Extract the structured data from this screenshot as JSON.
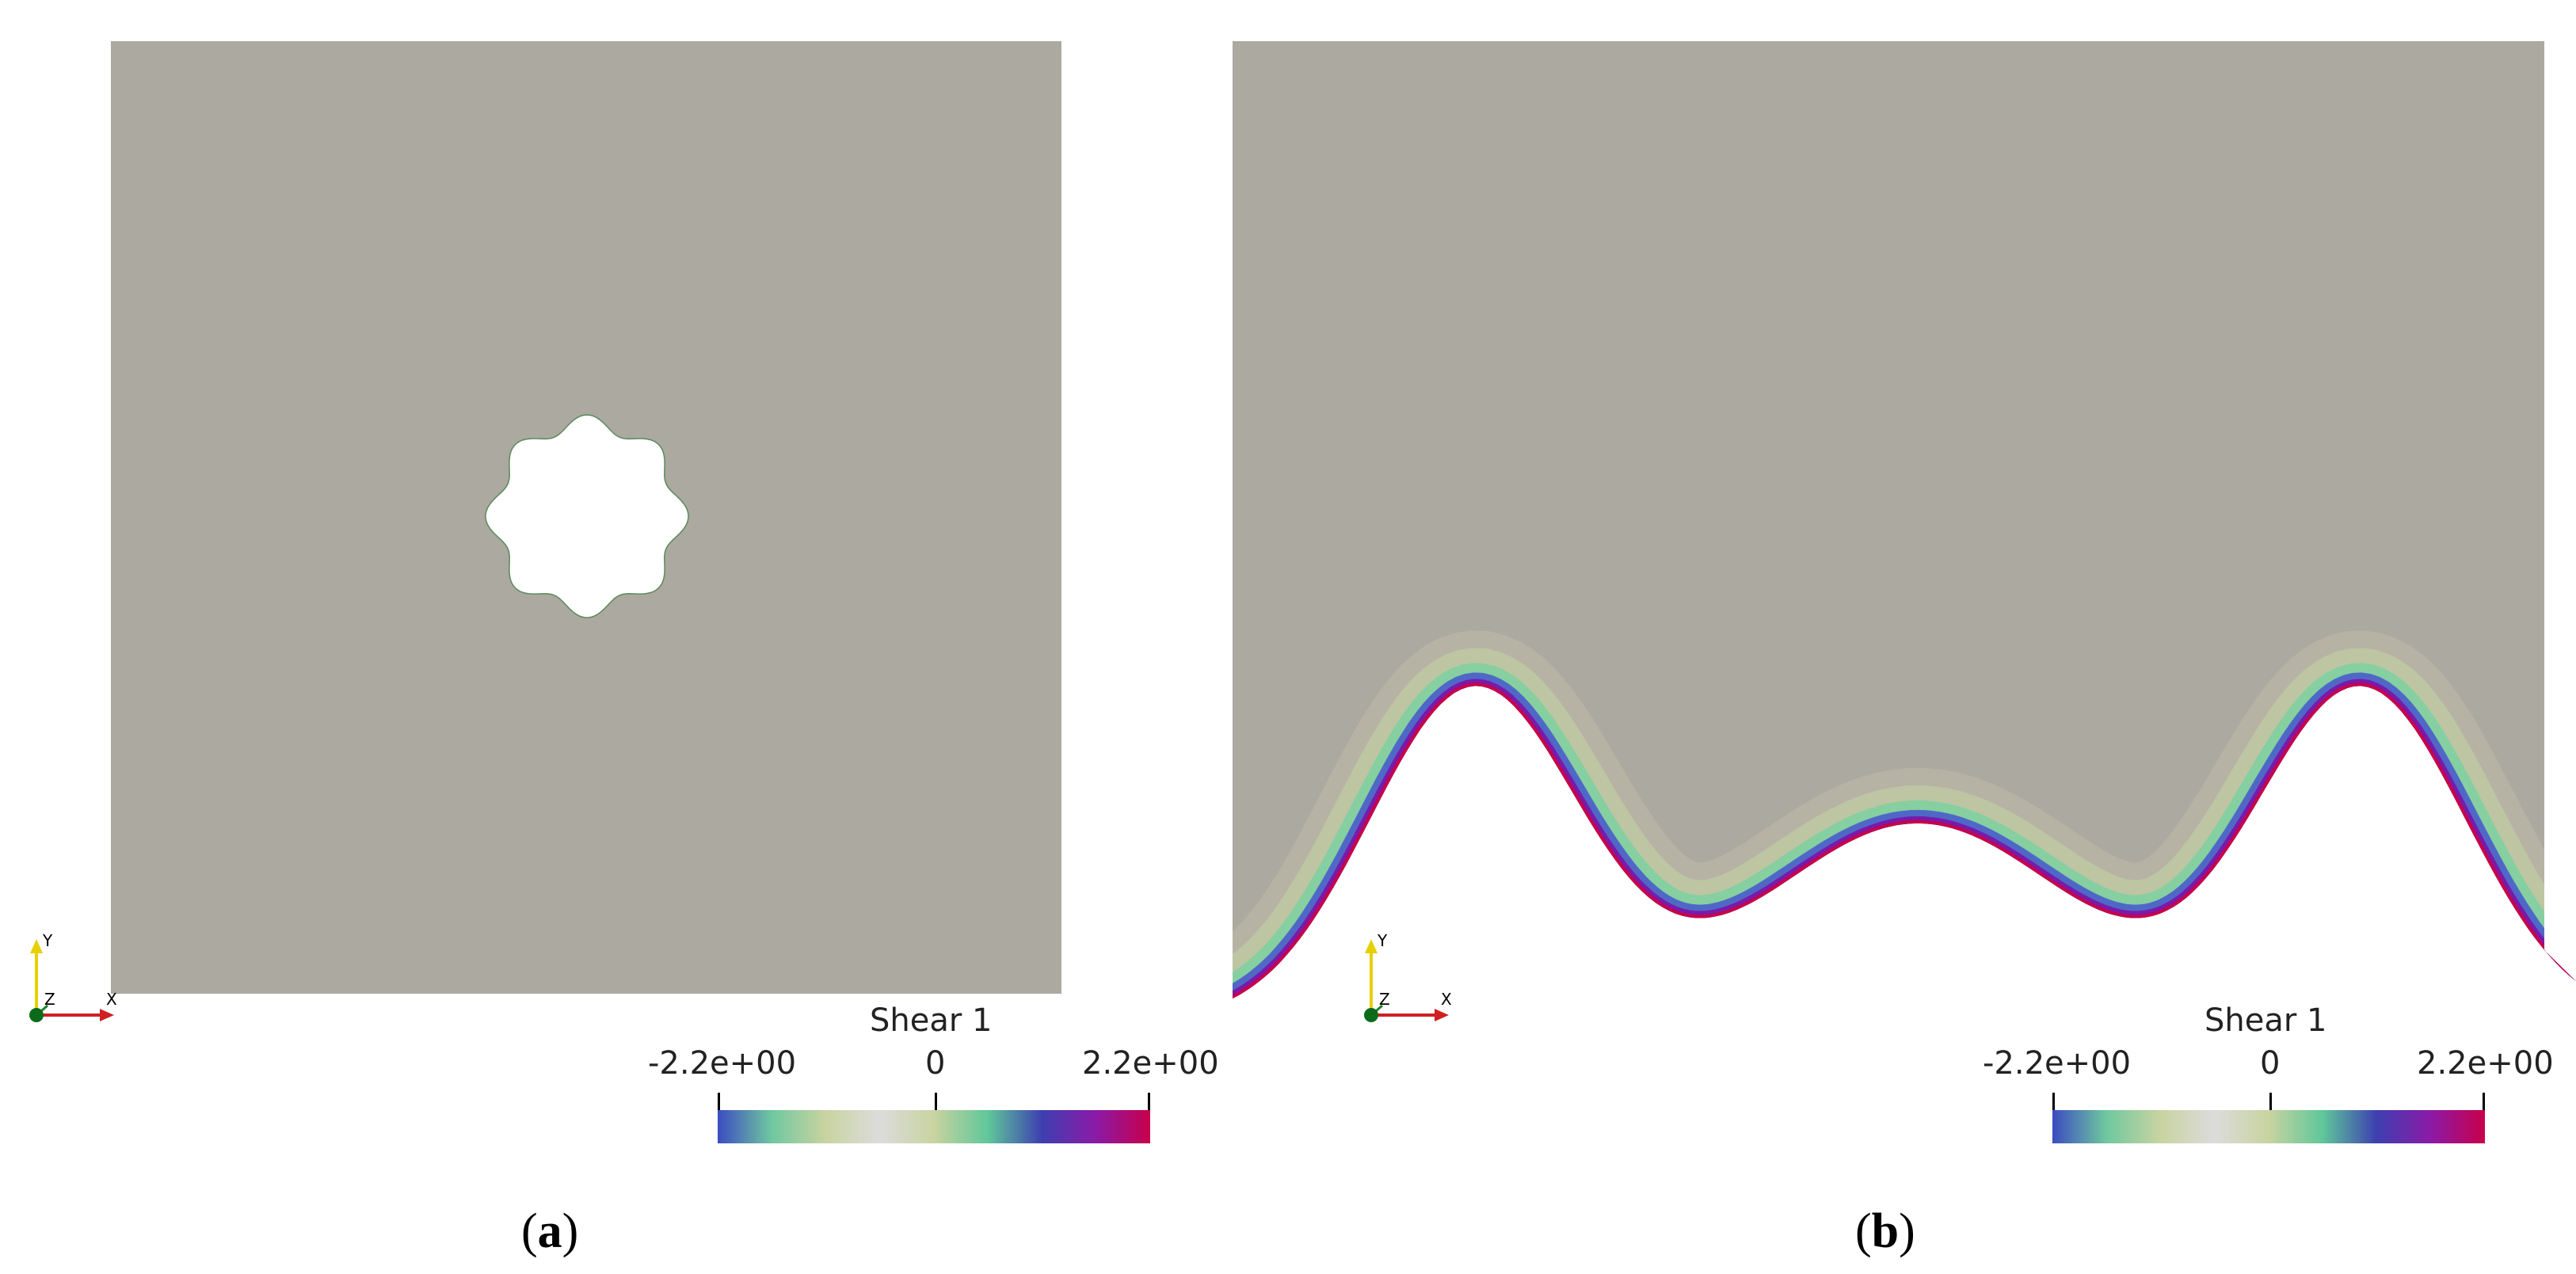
{
  "panels": [
    {
      "id": "a",
      "caption_open": "(",
      "caption_letter": "a",
      "caption_close": ")",
      "legend": {
        "title": "Shear 1",
        "min_label": "-2.2e+00",
        "mid_label": "0",
        "max_label": "2.2e+00"
      },
      "axes": {
        "y": "Y",
        "z": "Z",
        "x": "X"
      }
    },
    {
      "id": "b",
      "caption_open": "(",
      "caption_letter": "b",
      "caption_close": ")",
      "legend": {
        "title": "Shear 1",
        "min_label": "-2.2e+00",
        "mid_label": "0",
        "max_label": "2.2e+00"
      },
      "axes": {
        "y": "Y",
        "z": "Z",
        "x": "X"
      }
    }
  ],
  "colors": {
    "domain": "#aca9a1",
    "background": "#ffffff",
    "colormap": [
      "#3b4cc0",
      "#6fc8a0",
      "#c9d3a0",
      "#dcdcdc",
      "#c9d3a0",
      "#5fc79a",
      "#3d3fb0",
      "#8b1aa6",
      "#c8004a"
    ]
  }
}
